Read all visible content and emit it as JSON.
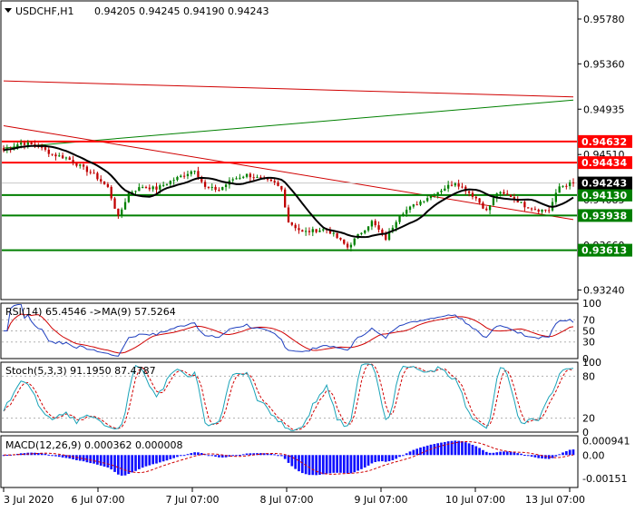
{
  "colors": {
    "frame": "#000000",
    "up_candle": "#008000",
    "down_candle": "#c00000",
    "ma_line": "#000000",
    "trend_red": "#d00000",
    "trend_green": "#008000",
    "level_red": "#ff0000",
    "level_green": "#007f00",
    "rsi_line": "#1f3fbf",
    "rsi_ma": "#d00000",
    "stoch_main": "#1aa3b8",
    "stoch_signal": "#d00000",
    "macd_hist": "#1010ff",
    "macd_signal": "#d00000",
    "grid": "#b0b0b0"
  },
  "chart_data": [
    {
      "type": "candlestick",
      "panel": "price",
      "symbol": "USDCHF,H1",
      "ohlc_label": "0.94205 0.94245 0.94190 0.94243",
      "ylim": [
        0.9315,
        0.9595
      ],
      "y_ticks": [
        "0.95780",
        "0.95360",
        "0.94935",
        "0.94510",
        "0.94085",
        "0.93660",
        "0.93240"
      ],
      "y_tick_values": [
        0.9578,
        0.9536,
        0.94935,
        0.9451,
        0.94085,
        0.9366,
        0.9324
      ],
      "x_ticks": [
        "3 Jul 2020",
        "6 Jul 07:00",
        "7 Jul 07:00",
        "8 Jul 07:00",
        "9 Jul 07:00",
        "10 Jul 07:00",
        "13 Jul 07:00"
      ],
      "close_key_points": [
        [
          0,
          0.9455
        ],
        [
          5,
          0.9462
        ],
        [
          10,
          0.9459
        ],
        [
          14,
          0.9451
        ],
        [
          18,
          0.9448
        ],
        [
          22,
          0.944
        ],
        [
          26,
          0.9432
        ],
        [
          30,
          0.942
        ],
        [
          33,
          0.9392
        ],
        [
          36,
          0.9415
        ],
        [
          40,
          0.9421
        ],
        [
          44,
          0.9419
        ],
        [
          48,
          0.9426
        ],
        [
          52,
          0.9432
        ],
        [
          55,
          0.9437
        ],
        [
          58,
          0.942
        ],
        [
          62,
          0.9418
        ],
        [
          66,
          0.9428
        ],
        [
          70,
          0.9432
        ],
        [
          74,
          0.9428
        ],
        [
          78,
          0.9424
        ],
        [
          80,
          0.9418
        ],
        [
          82,
          0.9388
        ],
        [
          86,
          0.9378
        ],
        [
          90,
          0.938
        ],
        [
          93,
          0.9381
        ],
        [
          96,
          0.9373
        ],
        [
          99,
          0.9364
        ],
        [
          102,
          0.9375
        ],
        [
          106,
          0.9388
        ],
        [
          110,
          0.9372
        ],
        [
          114,
          0.9395
        ],
        [
          118,
          0.9403
        ],
        [
          122,
          0.9411
        ],
        [
          126,
          0.9418
        ],
        [
          130,
          0.9425
        ],
        [
          133,
          0.9418
        ],
        [
          136,
          0.941
        ],
        [
          139,
          0.9398
        ],
        [
          142,
          0.9415
        ],
        [
          146,
          0.9412
        ],
        [
          150,
          0.9403
        ],
        [
          154,
          0.9399
        ],
        [
          157,
          0.9399
        ],
        [
          160,
          0.9421
        ],
        [
          164,
          0.94243
        ]
      ],
      "candle_count": 165,
      "moving_average_period": 12,
      "levels": [
        {
          "value": 0.94632,
          "label": "0.94632",
          "color": "#ff0000"
        },
        {
          "value": 0.94434,
          "label": "0.94434",
          "color": "#ff0000"
        },
        {
          "value": 0.9413,
          "label": "0.94130",
          "color": "#007f00"
        },
        {
          "value": 0.93938,
          "label": "0.93938",
          "color": "#007f00"
        },
        {
          "value": 0.93613,
          "label": "0.93613",
          "color": "#007f00"
        }
      ],
      "current_price": {
        "value": 0.94243,
        "label": "0.94243"
      },
      "trendlines": [
        {
          "from": [
            0,
            0.952
          ],
          "to": [
            164,
            0.9505
          ],
          "color": "#d00000"
        },
        {
          "from": [
            0,
            0.9457
          ],
          "to": [
            164,
            0.9502
          ],
          "color": "#008000"
        },
        {
          "from": [
            0,
            0.9478
          ],
          "to": [
            164,
            0.939
          ],
          "color": "#d00000"
        }
      ]
    },
    {
      "type": "line",
      "panel": "rsi",
      "label": "RSI(14) 65.4546  ->MA(9) 57.5264",
      "ylim": [
        0,
        100
      ],
      "y_ticks": [
        "100",
        "70",
        "50",
        "30",
        "0"
      ],
      "y_tick_values": [
        100,
        70,
        50,
        30,
        0
      ],
      "grid_levels": [
        70,
        50,
        30
      ],
      "last_values": {
        "rsi": 65.4546,
        "ma": 57.5264
      }
    },
    {
      "type": "line",
      "panel": "stochastic",
      "label": "Stoch(5,3,3) 91.1950 87.4787",
      "ylim": [
        0,
        100
      ],
      "y_ticks": [
        "100",
        "80",
        "20",
        "0"
      ],
      "y_tick_values": [
        100,
        80,
        20,
        0
      ],
      "grid_levels": [
        80,
        20
      ],
      "last_values": {
        "main": 91.195,
        "signal": 87.4787
      }
    },
    {
      "type": "bar",
      "panel": "macd",
      "label": "MACD(12,26,9) 0.000362 0.000008",
      "ylim": [
        -0.0021,
        0.00125
      ],
      "y_ticks": [
        "0.000941",
        "0.00",
        "-0.00151"
      ],
      "y_tick_values": [
        0.000941,
        0.0,
        -0.00151
      ],
      "last_values": {
        "macd": 0.000362,
        "signal": 8e-06
      }
    }
  ]
}
